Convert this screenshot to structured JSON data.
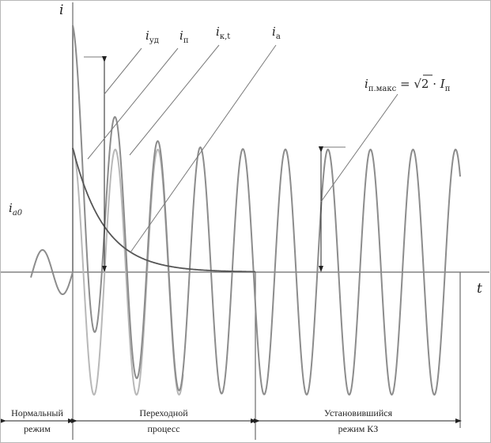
{
  "axes": {
    "y_label": "i",
    "x_label": "t"
  },
  "labels": {
    "iud": {
      "base": "i",
      "sub": "уд"
    },
    "ip": {
      "base": "i",
      "sub": "п"
    },
    "ikt": {
      "base": "i",
      "sub": "к,t"
    },
    "ia": {
      "base": "i",
      "sub": "а"
    },
    "ia0": {
      "base": "i",
      "sub": "a0"
    },
    "formula": {
      "lhs_base": "i",
      "lhs_sub": "п.макс",
      "eq": " = ",
      "sqrt_arg": "2",
      "dot": " · ",
      "rhs_base": "I",
      "rhs_sub": "п"
    }
  },
  "stages": [
    {
      "line1": "Нормальный",
      "line2": "режим"
    },
    {
      "line1": "Переходной",
      "line2": "процесс"
    },
    {
      "line1": "Установившийся",
      "line2": "режим КЗ"
    }
  ],
  "colors": {
    "total_current": "#8c8c8c",
    "periodic_component": "#b8b8b8",
    "aperiodic_component": "#555555",
    "axis": "#6a6a6a"
  },
  "icons": {
    "arrow": "arrow-icon"
  }
}
